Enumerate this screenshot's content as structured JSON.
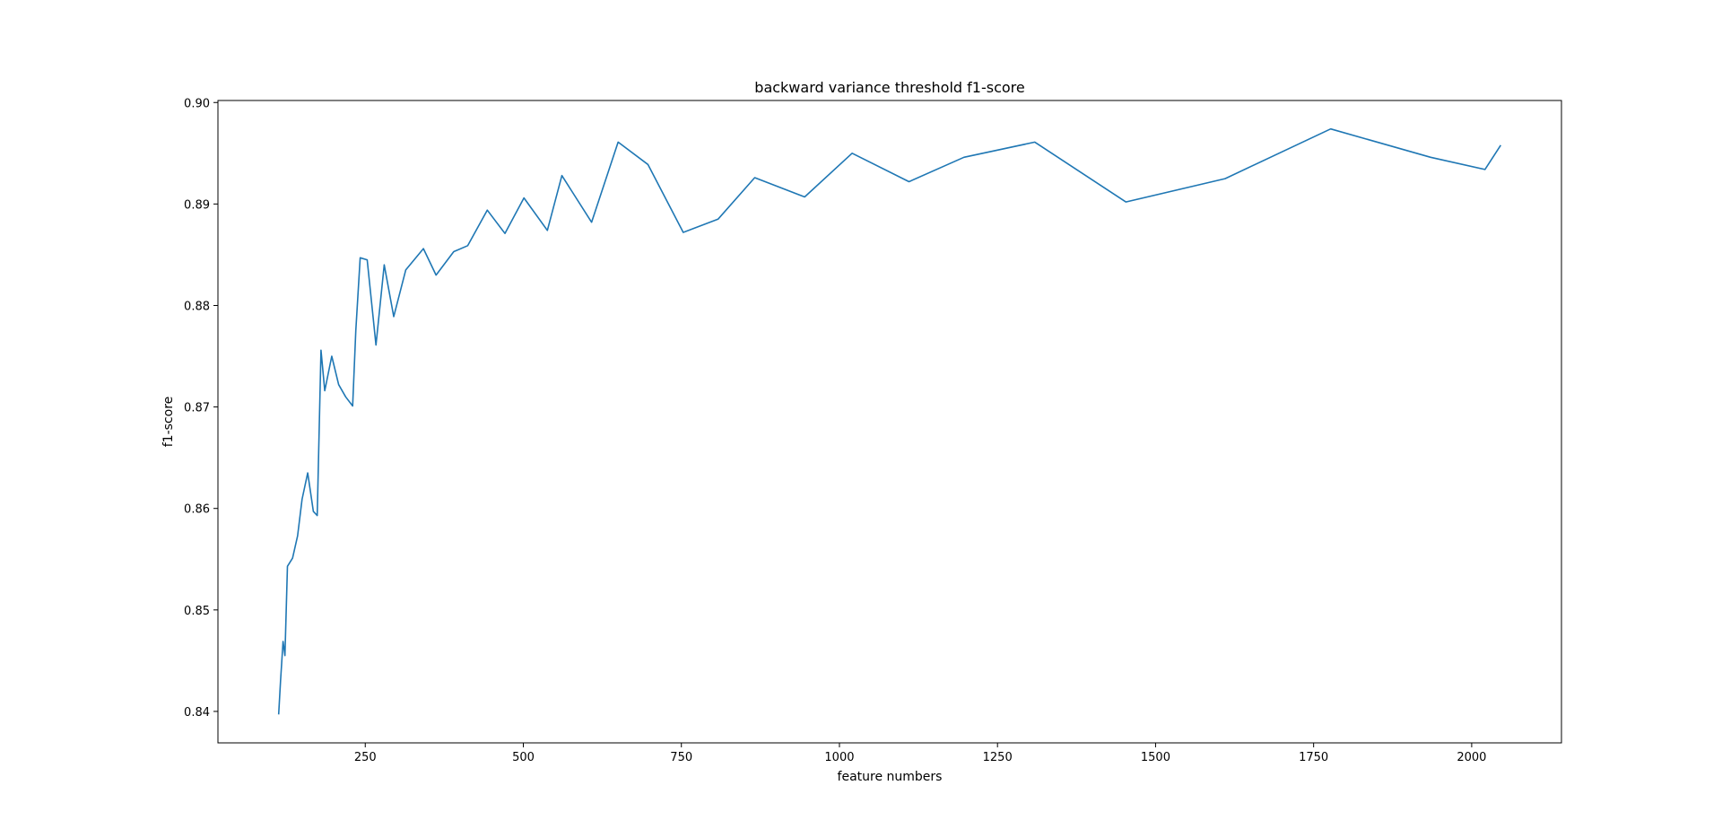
{
  "chart_data": {
    "type": "line",
    "title": "backward variance threshold f1-score",
    "xlabel": "feature numbers",
    "ylabel": "f1-score",
    "xlim": [
      17,
      2142
    ],
    "ylim": [
      0.8369,
      0.9002
    ],
    "x_ticks": [
      250,
      500,
      750,
      1000,
      1250,
      1500,
      1750,
      2000
    ],
    "x_tick_labels": [
      "250",
      "500",
      "750",
      "1000",
      "1250",
      "1500",
      "1750",
      "2000"
    ],
    "y_ticks": [
      0.84,
      0.85,
      0.86,
      0.87,
      0.88,
      0.89,
      0.9
    ],
    "y_tick_labels": [
      "0.84",
      "0.85",
      "0.86",
      "0.87",
      "0.88",
      "0.89",
      "0.90"
    ],
    "grid": false,
    "colors": {
      "line": "#1f77b4",
      "axes": "#000000",
      "background": "#ffffff"
    },
    "series": [
      {
        "x": [
          113,
          116,
          120,
          123,
          127,
          135,
          143,
          150,
          159,
          168,
          174,
          180,
          186,
          197,
          208,
          219,
          230,
          235,
          242,
          253,
          267,
          280,
          295,
          314,
          342,
          362,
          390,
          412,
          443,
          471,
          501,
          538,
          561,
          608,
          650,
          697,
          753,
          808,
          866,
          945,
          1020,
          1110,
          1197,
          1309,
          1453,
          1610,
          1777,
          1935,
          2021,
          2046
        ],
        "y": [
          0.8397,
          0.843,
          0.8469,
          0.8455,
          0.8543,
          0.8551,
          0.8573,
          0.8609,
          0.8635,
          0.8597,
          0.8593,
          0.8756,
          0.8716,
          0.875,
          0.8722,
          0.871,
          0.8701,
          0.8775,
          0.8847,
          0.8845,
          0.8761,
          0.884,
          0.8789,
          0.8835,
          0.8856,
          0.883,
          0.8853,
          0.8859,
          0.8894,
          0.8871,
          0.8906,
          0.8874,
          0.8928,
          0.8882,
          0.8961,
          0.8939,
          0.8872,
          0.8885,
          0.8926,
          0.8907,
          0.895,
          0.8922,
          0.8946,
          0.8961,
          0.8902,
          0.8925,
          0.8974,
          0.8946,
          0.8934,
          0.8958
        ]
      }
    ]
  }
}
